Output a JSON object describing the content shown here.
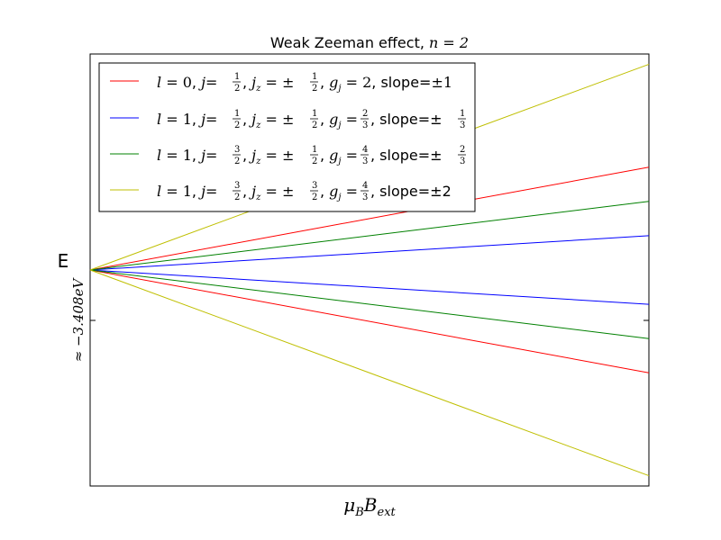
{
  "chart_data": {
    "type": "line",
    "title": "Weak Zeeman effect, ",
    "title_math": "n = 2",
    "xlabel": "μ",
    "xlabel_sub1": "B",
    "xlabel_main2": "B",
    "xlabel_sub2": "ext",
    "ylabel": "E",
    "ylabel_note": "≈ −3.408eV",
    "xlim": [
      0,
      1
    ],
    "ylim": [
      -2.1,
      2.1
    ],
    "grid": false,
    "legend_position": "upper-left",
    "series": [
      {
        "name": "l=0, j=1/2, jz=±1/2, gj=2, slope=±1",
        "color": "#ff0000",
        "slopes": [
          1,
          -1
        ],
        "label_parts": {
          "l": "0",
          "j_num": "1",
          "j_den": "2",
          "jz_num": "1",
          "jz_den": "2",
          "gj": "2",
          "slope": "±1"
        }
      },
      {
        "name": "l=1, j=1/2, jz=±1/2, gj=2/3, slope=±1/3",
        "color": "#0000ff",
        "slopes": [
          0.3333,
          -0.3333
        ],
        "label_parts": {
          "l": "1",
          "j_num": "1",
          "j_den": "2",
          "jz_num": "1",
          "jz_den": "2",
          "gj_num": "2",
          "gj_den": "3",
          "slope_num": "1",
          "slope_den": "3"
        }
      },
      {
        "name": "l=1, j=3/2, jz=±1/2, gj=4/3, slope=±2/3",
        "color": "#008000",
        "slopes": [
          0.6667,
          -0.6667
        ],
        "label_parts": {
          "l": "1",
          "j_num": "3",
          "j_den": "2",
          "jz_num": "1",
          "jz_den": "2",
          "gj_num": "4",
          "gj_den": "3",
          "slope_num": "2",
          "slope_den": "3"
        }
      },
      {
        "name": "l=1, j=3/2, jz=±3/2, gj=4/3, slope=±2",
        "color": "#bfbf00",
        "slopes": [
          2,
          -2
        ],
        "label_parts": {
          "l": "1",
          "j_num": "3",
          "j_den": "2",
          "jz_num": "3",
          "jz_den": "2",
          "gj_num": "4",
          "gj_den": "3",
          "slope": "±2"
        }
      }
    ]
  }
}
